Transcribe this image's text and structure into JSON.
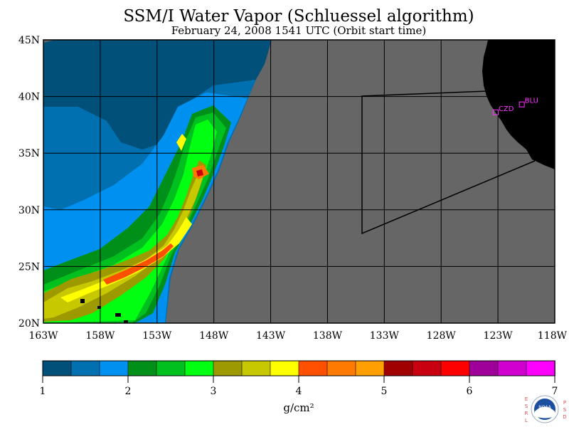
{
  "title": "SSM/I Water Vapor (Schluessel algorithm)",
  "subtitle": "February 24, 2008  1541 UTC  (Orbit start time)",
  "map": {
    "lat_labels": [
      "45N",
      "40N",
      "35N",
      "30N",
      "25N",
      "20N"
    ],
    "lon_labels": [
      "163W",
      "158W",
      "153W",
      "148W",
      "143W",
      "138W",
      "133W",
      "128W",
      "123W",
      "118W"
    ],
    "lat_range": [
      20,
      45
    ],
    "lon_range": [
      -163,
      -118
    ],
    "stations": [
      {
        "label": "CZD",
        "lat": 38.6,
        "lon": -123.2
      },
      {
        "label": "BLU",
        "lat": 39.3,
        "lon": -120.9
      }
    ],
    "colors": {
      "no_data": "#666666",
      "land": "#000000",
      "ocean_land_boundary": "#000000",
      "grid": "#000000",
      "station": "#ff33ff"
    }
  },
  "colorbar": {
    "tick_labels": [
      "1",
      "2",
      "3",
      "4",
      "5",
      "6",
      "7"
    ],
    "unit": "g/cm²",
    "range": [
      1,
      7
    ],
    "colors": [
      "#00507a",
      "#0070b0",
      "#0090f0",
      "#00901a",
      "#00c020",
      "#00ff10",
      "#9c9a00",
      "#c8c800",
      "#ffff00",
      "#ff5000",
      "#ff7a00",
      "#ffa000",
      "#a00000",
      "#c80010",
      "#ff0000",
      "#a0009a",
      "#d000d0",
      "#ff00ff"
    ]
  },
  "logo": {
    "left_letters": "ESRL",
    "right_letters": "PSD",
    "badge": "NOAA"
  }
}
